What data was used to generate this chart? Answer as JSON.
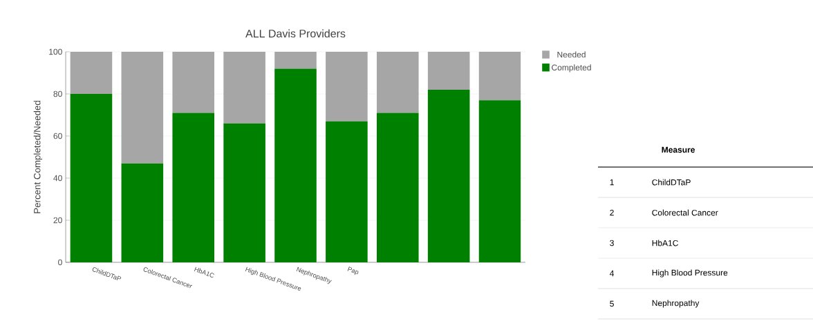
{
  "chart_data": [
    {
      "type": "bar",
      "title": "ALL Davis Providers",
      "ylabel": "Percent Completed/Needed",
      "categories": [
        "ChildDTaP",
        "Colorectal Cancer",
        "HbA1C",
        "High Blood Pressure",
        "Nephropathy",
        "Pap",
        null,
        null,
        null
      ],
      "series": [
        {
          "name": "Completed",
          "color": "#008000",
          "values": [
            80,
            47,
            71,
            66,
            92,
            67,
            71,
            82,
            77
          ]
        },
        {
          "name": "Needed",
          "color": "#a6a6a6",
          "values": [
            20,
            53,
            29,
            34,
            8,
            33,
            29,
            18,
            23
          ]
        }
      ],
      "stacked": true,
      "ylim": [
        0,
        100
      ],
      "yticks": [
        0,
        20,
        40,
        60,
        80,
        100
      ],
      "grid": "y",
      "legend": "top right"
    },
    {
      "type": "other",
      "title": "Measure",
      "categories": [
        "ChildDTaP",
        "Colorectal Cancer",
        "HbA1C",
        "High Blood Pressure",
        "Nephropathy"
      ],
      "values": [
        1,
        2,
        3,
        4,
        5
      ],
      "data_labels": true
    }
  ]
}
